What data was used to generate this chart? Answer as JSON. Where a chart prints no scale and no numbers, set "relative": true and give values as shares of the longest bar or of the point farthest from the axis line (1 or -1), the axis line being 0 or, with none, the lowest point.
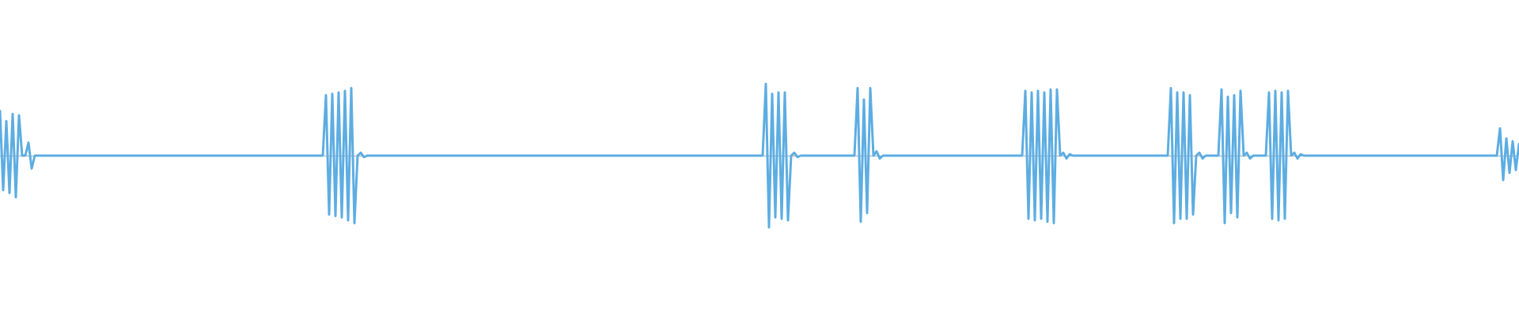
{
  "chart_data": {
    "type": "line",
    "relative": true,
    "color": "#5dade2",
    "categories": [
      null,
      null,
      null,
      null,
      null,
      null,
      null,
      null,
      null,
      null,
      null,
      null,
      null,
      null,
      null,
      null,
      null,
      null,
      null,
      null,
      null,
      null,
      null,
      null,
      null,
      null,
      null,
      null,
      null,
      null,
      null,
      null,
      null,
      null,
      null,
      null,
      null,
      null,
      null,
      null,
      null,
      null,
      null,
      null,
      null,
      null,
      null,
      null,
      null,
      null,
      null,
      null,
      null,
      null,
      null,
      null,
      null,
      null,
      null,
      null,
      null,
      null,
      null,
      null,
      null,
      null,
      null,
      null,
      null,
      null,
      null,
      null,
      null,
      null,
      null,
      null,
      null,
      null,
      null,
      null,
      null,
      null,
      null,
      null,
      null,
      null,
      null,
      null,
      null,
      null,
      null,
      null,
      null,
      null,
      null,
      null,
      null,
      null,
      null,
      null,
      null,
      null,
      null,
      null,
      null,
      null,
      null,
      null,
      null,
      null,
      null,
      null,
      null,
      null,
      null,
      null,
      null,
      null,
      null,
      null,
      null,
      null,
      null,
      null,
      null,
      null,
      null,
      null,
      null,
      null,
      null,
      null,
      null,
      null,
      null,
      null,
      null,
      null,
      null,
      null,
      null,
      null,
      null,
      null,
      null,
      null,
      null,
      null,
      null,
      null,
      null,
      null,
      null,
      null,
      null,
      null,
      null,
      null,
      null,
      null,
      null,
      null,
      null,
      null,
      null,
      null,
      null,
      null,
      null,
      null,
      null,
      null,
      null,
      null,
      null,
      null,
      null,
      null,
      null,
      null,
      null,
      null,
      null,
      null,
      null,
      null,
      null,
      null,
      null,
      null,
      null,
      null,
      null,
      null,
      null,
      null,
      null,
      null,
      null,
      null,
      null,
      null,
      null,
      null,
      null,
      null,
      null,
      null,
      null,
      null,
      null,
      null,
      null,
      null,
      null,
      null,
      null,
      null,
      null,
      null,
      null,
      null,
      null,
      null,
      null,
      null,
      null,
      null,
      null,
      null,
      null,
      null,
      null,
      null,
      null,
      null,
      null,
      null,
      null,
      null,
      null,
      null,
      null,
      null,
      null,
      null,
      null,
      null,
      null,
      null,
      null,
      null,
      null,
      null,
      null,
      null,
      null,
      null,
      null,
      null,
      null,
      null,
      null,
      null,
      null,
      null,
      null,
      null,
      null,
      null,
      null,
      null,
      null,
      null,
      null,
      null,
      null,
      null,
      null,
      null,
      null,
      null,
      null,
      null,
      null,
      null,
      null,
      null,
      null,
      null,
      null,
      null,
      null,
      null,
      null,
      null,
      null,
      null,
      null,
      null,
      null,
      null,
      null,
      null,
      null,
      null,
      null,
      null,
      null,
      null,
      null,
      null,
      null,
      null,
      null,
      null,
      null,
      null,
      null,
      null,
      null,
      null,
      null,
      null,
      null,
      null,
      null,
      null,
      null,
      null,
      null,
      null,
      null,
      null,
      null,
      null,
      null,
      null,
      null,
      null,
      null,
      null,
      null,
      null,
      null,
      null,
      null,
      null,
      null,
      null,
      null,
      null,
      null,
      null,
      null,
      null,
      null,
      null,
      null,
      null,
      null,
      null,
      null,
      null,
      null,
      null,
      null,
      null,
      null,
      null,
      null,
      null,
      null,
      null,
      null,
      null,
      null,
      null,
      null,
      null,
      null,
      null,
      null,
      null,
      null,
      null,
      null,
      null,
      null,
      null,
      null,
      null,
      null,
      null,
      null,
      null,
      null,
      null,
      null,
      null,
      null,
      null,
      null,
      null,
      null,
      null,
      null,
      null,
      null,
      null,
      null,
      null,
      null,
      null,
      null,
      null,
      null,
      null,
      null,
      null,
      null,
      null,
      null,
      null,
      null,
      null,
      null,
      null,
      null,
      null,
      null,
      null,
      null,
      null,
      null,
      null,
      null,
      null,
      null,
      null,
      null,
      null,
      null,
      null,
      null,
      null,
      null,
      null,
      null,
      null,
      null,
      null,
      null,
      null,
      null,
      null,
      null,
      null,
      null,
      null,
      null,
      null,
      null,
      null,
      null,
      null,
      null,
      null,
      null,
      null,
      null,
      null,
      null,
      null,
      null,
      null,
      null,
      null,
      null,
      null,
      null
    ],
    "values": [
      0.62,
      -0.48,
      0.48,
      -0.52,
      0.58,
      -0.58,
      0.56,
      0,
      0,
      0.18,
      -0.18,
      0,
      0,
      0,
      0,
      0,
      0,
      0,
      0,
      0,
      0,
      0,
      0,
      0,
      0,
      0,
      0,
      0,
      0,
      0,
      0,
      0,
      0,
      0,
      0,
      0,
      0,
      0,
      0,
      0,
      0,
      0,
      0,
      0,
      0,
      0,
      0,
      0,
      0,
      0,
      0,
      0,
      0,
      0,
      0,
      0,
      0,
      0,
      0,
      0,
      0,
      0,
      0,
      0,
      0,
      0,
      0,
      0,
      0,
      0,
      0,
      0,
      0,
      0,
      0,
      0,
      0,
      0,
      0,
      0,
      0,
      0,
      0,
      0,
      0,
      0,
      0,
      0,
      0,
      0,
      0,
      0,
      0,
      0,
      0,
      0,
      0,
      0,
      0,
      0,
      0,
      0,
      0,
      0.84,
      -0.82,
      0.86,
      -0.84,
      0.88,
      -0.86,
      0.9,
      -0.9,
      0.94,
      -0.94,
      0,
      0.04,
      -0.02,
      0,
      0,
      0,
      0,
      0,
      0,
      0,
      0,
      0,
      0,
      0,
      0,
      0,
      0,
      0,
      0,
      0,
      0,
      0,
      0,
      0,
      0,
      0,
      0,
      0,
      0,
      0,
      0,
      0,
      0,
      0,
      0,
      0,
      0,
      0,
      0,
      0,
      0,
      0,
      0,
      0,
      0,
      0,
      0,
      0,
      0,
      0,
      0,
      0,
      0,
      0,
      0,
      0,
      0,
      0,
      0,
      0,
      0,
      0,
      0,
      0,
      0,
      0,
      0,
      0,
      0,
      0,
      0,
      0,
      0,
      0,
      0,
      0,
      0,
      0,
      0,
      0,
      0,
      0,
      0,
      0,
      0,
      0,
      0,
      0,
      0,
      0,
      0,
      0,
      0,
      0,
      0,
      0,
      0,
      0,
      0,
      0,
      0,
      0,
      0,
      0,
      0,
      0,
      0,
      0,
      0,
      0,
      0,
      0,
      0,
      0,
      0,
      0,
      0,
      0,
      0,
      0,
      0,
      0,
      0,
      0,
      0,
      0,
      0,
      0,
      0,
      1,
      -1,
      0.86,
      -0.86,
      0.88,
      -0.88,
      0.88,
      -0.9,
      0,
      0.04,
      -0.02,
      0,
      0,
      0,
      0,
      0,
      0,
      0,
      0,
      0,
      0,
      0,
      0,
      0,
      0,
      0,
      0,
      0,
      0,
      0.94,
      -0.92,
      0.78,
      -0.8,
      0.94,
      0,
      0.06,
      -0.04,
      0,
      0,
      0,
      0,
      0,
      0,
      0,
      0,
      0,
      0,
      0,
      0,
      0,
      0,
      0,
      0,
      0,
      0,
      0,
      0,
      0,
      0,
      0,
      0,
      0,
      0,
      0,
      0,
      0,
      0,
      0,
      0,
      0,
      0,
      0,
      0,
      0,
      0,
      0,
      0,
      0,
      0,
      0,
      0,
      0,
      0.9,
      -0.88,
      0.88,
      -0.9,
      0.9,
      -0.88,
      0.88,
      -0.92,
      0.92,
      -0.94,
      0.92,
      0,
      0.04,
      -0.04,
      0.02,
      0,
      0,
      0,
      0,
      0,
      0,
      0,
      0,
      0,
      0,
      0,
      0,
      0,
      0,
      0,
      0,
      0,
      0,
      0,
      0,
      0,
      0,
      0,
      0,
      0,
      0,
      0,
      0,
      0,
      0,
      0,
      0.94,
      -0.94,
      0.88,
      -0.88,
      0.88,
      -0.88,
      0.84,
      -0.82,
      0,
      0.04,
      -0.04,
      0,
      0,
      0,
      0,
      0,
      0.92,
      -0.94,
      0.82,
      -0.8,
      0.84,
      -0.86,
      0.9,
      0,
      0.04,
      -0.04,
      0,
      0,
      0,
      0,
      0,
      0.88,
      -0.88,
      0.9,
      -0.9,
      0.88,
      -0.88,
      0.9,
      0,
      0.04,
      -0.04,
      0.02,
      0,
      0,
      0,
      0,
      0,
      0,
      0,
      0,
      0,
      0,
      0,
      0,
      0,
      0,
      0,
      0,
      0,
      0,
      0,
      0,
      0,
      0,
      0,
      0,
      0,
      0,
      0,
      0,
      0,
      0,
      0,
      0,
      0,
      0,
      0,
      0,
      0,
      0,
      0,
      0,
      0,
      0,
      0,
      0,
      0,
      0,
      0,
      0,
      0,
      0,
      0,
      0,
      0,
      0,
      0,
      0,
      0,
      0,
      0,
      0,
      0,
      0,
      0.38,
      -0.34,
      0.24,
      -0.24,
      0.2,
      -0.2,
      0.16
    ]
  }
}
